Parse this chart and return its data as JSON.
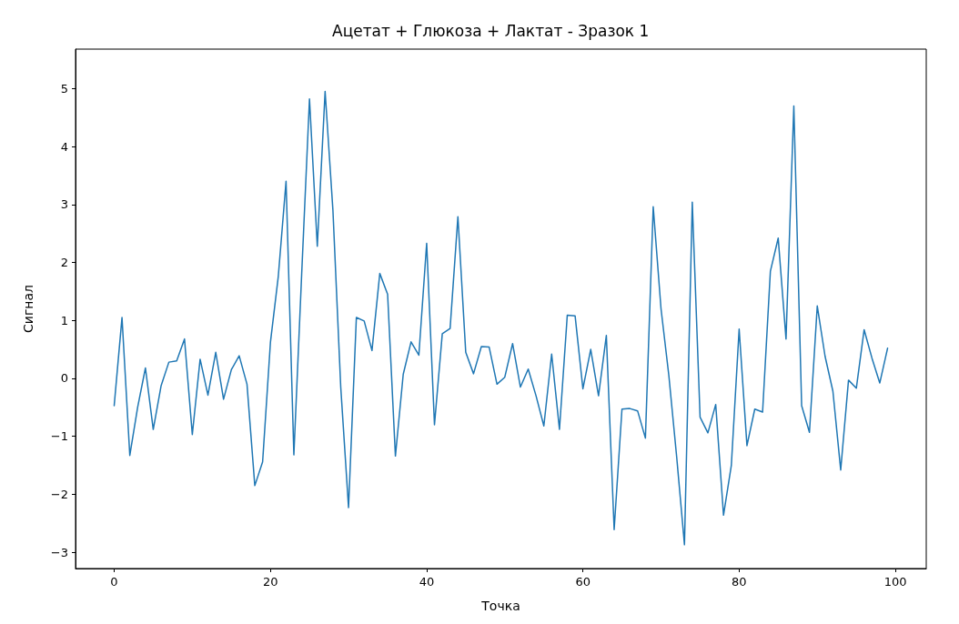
{
  "chart_data": {
    "type": "line",
    "title": "Ацетат + Глюкоза + Лактат - Зразок 1",
    "xlabel": "Точка",
    "ylabel": "Сигнал",
    "x": [
      0,
      1,
      2,
      3,
      4,
      5,
      6,
      7,
      8,
      9,
      10,
      11,
      12,
      13,
      14,
      15,
      16,
      17,
      18,
      19,
      20,
      21,
      22,
      23,
      24,
      25,
      26,
      27,
      28,
      29,
      30,
      31,
      32,
      33,
      34,
      35,
      36,
      37,
      38,
      39,
      40,
      41,
      42,
      43,
      44,
      45,
      46,
      47,
      48,
      49,
      50,
      51,
      52,
      53,
      54,
      55,
      56,
      57,
      58,
      59,
      60,
      61,
      62,
      63,
      64,
      65,
      66,
      67,
      68,
      69,
      70,
      71,
      72,
      73,
      74,
      75,
      76,
      77,
      78,
      79,
      80,
      81,
      82,
      83,
      84,
      85,
      86,
      87,
      88,
      89,
      90,
      91,
      92,
      93,
      94,
      95,
      96,
      97,
      98,
      99
    ],
    "series": [
      {
        "color": "#1f77b4",
        "values": [
          -0.47,
          1.05,
          -1.33,
          -0.5,
          0.18,
          -0.88,
          -0.13,
          0.28,
          0.3,
          0.68,
          -0.97,
          0.33,
          -0.29,
          0.45,
          -0.36,
          0.15,
          0.39,
          -0.1,
          -1.85,
          -1.44,
          0.62,
          1.75,
          3.4,
          -1.32,
          1.8,
          4.82,
          2.28,
          4.95,
          2.9,
          -0.15,
          -2.23,
          1.05,
          0.99,
          0.48,
          1.81,
          1.45,
          -1.34,
          0.07,
          0.63,
          0.4,
          2.33,
          -0.8,
          0.77,
          0.86,
          2.79,
          0.45,
          0.08,
          0.55,
          0.54,
          -0.1,
          0.02,
          0.6,
          -0.15,
          0.16,
          -0.3,
          -0.82,
          0.42,
          -0.88,
          1.09,
          1.08,
          -0.18,
          0.5,
          -0.3,
          0.74,
          -2.61,
          -0.53,
          -0.52,
          -0.56,
          -1.03,
          2.96,
          1.2,
          0.05,
          -1.35,
          -2.87,
          3.04,
          -0.67,
          -0.94,
          -0.45,
          -2.36,
          -1.5,
          0.85,
          -1.16,
          -0.53,
          -0.58,
          1.85,
          2.42,
          0.68,
          4.7,
          -0.47,
          -0.93,
          1.25,
          0.38,
          -0.22,
          -1.58,
          -0.03,
          -0.17,
          0.84,
          0.35,
          -0.08,
          0.52
        ]
      }
    ],
    "xlim": [
      -4.95,
      103.95
    ],
    "xticks": [
      0,
      20,
      40,
      60,
      80,
      100
    ],
    "ylim": [
      -3.28,
      5.68
    ],
    "yticks": [
      -3,
      -2,
      -1,
      0,
      1,
      2,
      3,
      4,
      5
    ],
    "grid": false,
    "marker": "none",
    "line_style": "solid"
  }
}
